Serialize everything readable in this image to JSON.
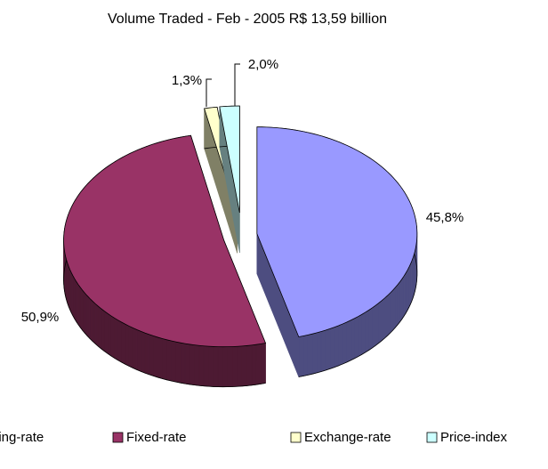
{
  "chart_data": {
    "type": "pie3d",
    "title": "Volume Traded - Feb - 2005 R$ 13,59 billion",
    "categories": [
      "Floating-rate",
      "Fixed-rate",
      "Exchange-rate",
      "Price-index"
    ],
    "values": [
      45.8,
      50.9,
      1.3,
      2.0
    ],
    "value_labels": [
      "45,8%",
      "50,9%",
      "1,3%",
      "2,0%"
    ],
    "colors": [
      "#9999ff",
      "#993366",
      "#ffffcc",
      "#ccffff"
    ],
    "legend": "bottom"
  }
}
